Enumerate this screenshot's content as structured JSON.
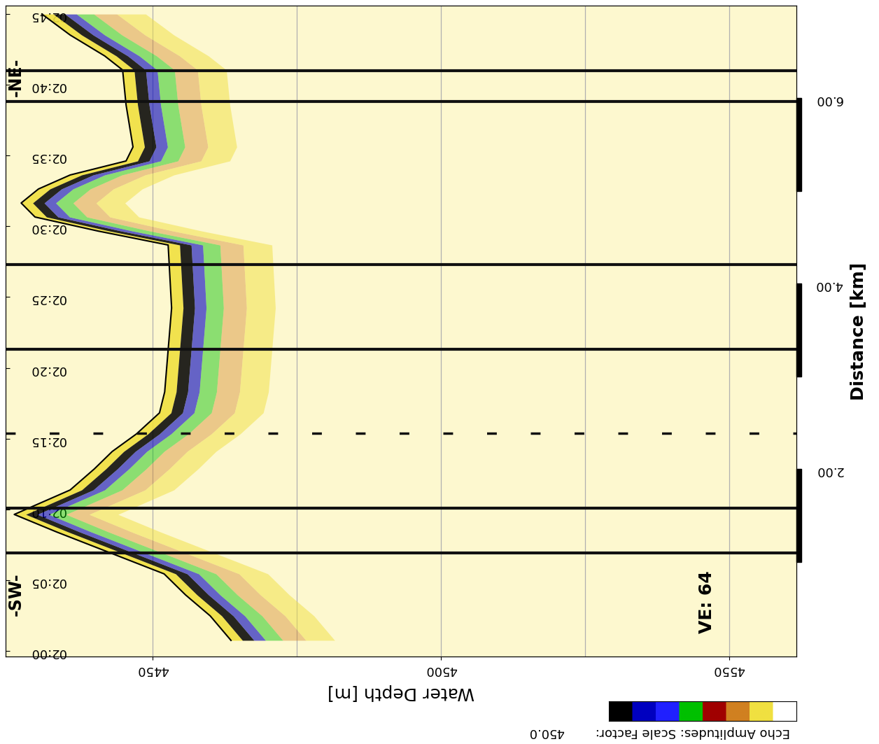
{
  "chart_data": {
    "type": "echogram",
    "x_label": "Water Depth [m]",
    "y2_label": "Distance [km]",
    "xlim": [
      4424.5,
      4561.7
    ],
    "xticks": [
      4450,
      4500,
      4550
    ],
    "ylim": [
      -0.4,
      45.6
    ],
    "yticks": [
      {
        "value": 0,
        "label": "02:00"
      },
      {
        "value": 5,
        "label": "02:05"
      },
      {
        "value": 10,
        "label": "02:10"
      },
      {
        "value": 15,
        "label": "02:15"
      },
      {
        "value": 20,
        "label": "02:20"
      },
      {
        "value": 25,
        "label": "02:25"
      },
      {
        "value": 30,
        "label": "02:30"
      },
      {
        "value": 35,
        "label": "02:35"
      },
      {
        "value": 40,
        "label": "02:40"
      },
      {
        "value": 45,
        "label": "02:45"
      }
    ],
    "y2lim": [
      -0.02,
      7.0
    ],
    "y2ticks": [
      {
        "value": 2,
        "label": "2.00"
      },
      {
        "value": 4,
        "label": "4.00"
      },
      {
        "value": 6,
        "label": "6.00"
      }
    ],
    "grid": "x",
    "scale_bar_segments": [
      [
        1,
        2
      ],
      [
        3,
        4
      ],
      [
        5,
        6
      ]
    ],
    "seafloor": {
      "time": [
        0.74,
        2.47,
        3.96,
        5.44,
        8.41,
        9.64,
        11.37,
        12.86,
        14.09,
        15.33,
        16.82,
        18.3,
        21.27,
        24.23,
        27.2,
        28.68,
        29.67,
        30.66,
        31.65,
        32.64,
        33.63,
        34.62,
        35.61,
        37.09,
        38.58,
        41.05,
        42.04,
        43.52,
        45.0
      ],
      "depth": [
        4463.6,
        4460.0,
        4455.7,
        4452.0,
        4433.3,
        4426.0,
        4435.7,
        4439.9,
        4443.0,
        4447.2,
        4451.2,
        4452.1,
        4452.7,
        4453.3,
        4452.9,
        4452.7,
        4440.5,
        4429.6,
        4427.2,
        4430.2,
        4435.7,
        4445.4,
        4446.6,
        4446.0,
        4445.4,
        4444.8,
        4441.7,
        4435.7,
        4430.8
      ]
    },
    "noise_lines": [
      6.9,
      10.1,
      21.3,
      27.3,
      38.8,
      41.0
    ],
    "dashed_noise_line": 15.4,
    "annotations": [
      "VE: 64",
      "-SW-",
      "-NE-"
    ],
    "colorbar_label": "Echo Amplitudes: Scale Factor:",
    "colorbar_value": "450.0",
    "colorbar_colors": [
      "#000000",
      "#0000c0",
      "#2020ff",
      "#00c000",
      "#a00000",
      "#d08020",
      "#f0e040",
      "#ffffff"
    ]
  }
}
